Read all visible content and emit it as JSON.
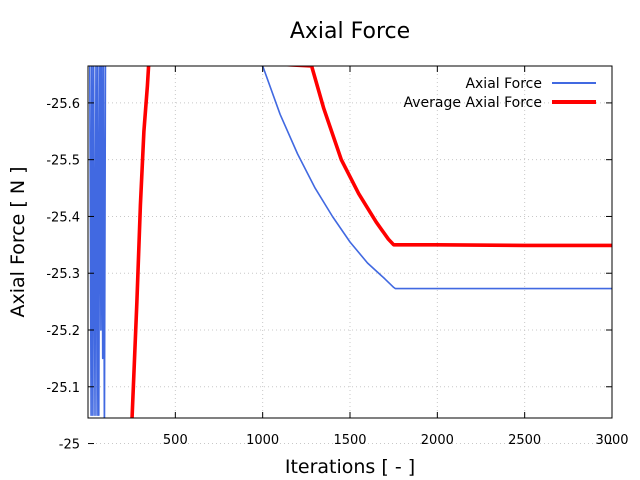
{
  "chart_data": {
    "type": "line",
    "title": "Axial Force",
    "xlabel": "Iterations [ - ]",
    "ylabel": "Axial Force [ N ]",
    "xlim": [
      0,
      3000
    ],
    "ylim": [
      -25.045,
      -25.665
    ],
    "y_axis_inverted": true,
    "x_ticks": [
      500,
      1000,
      1500,
      2000,
      2500,
      3000
    ],
    "x_tick_labels": [
      "500",
      "1000",
      "1500",
      "2000",
      "2500",
      "3000"
    ],
    "y_ticks": [
      -25,
      -25.1,
      -25.2,
      -25.3,
      -25.4,
      -25.5,
      -25.6
    ],
    "y_tick_labels": [
      "-25",
      "-25.1",
      "-25.2",
      "-25.3",
      "-25.4",
      "-25.5",
      "-25.6"
    ],
    "grid": true,
    "legend_position": "top-right",
    "series": [
      {
        "name": "Axial Force",
        "color": "#4169e1",
        "x": [
          10,
          18,
          22,
          28,
          32,
          40,
          46,
          52,
          56,
          62,
          68,
          74,
          78,
          84,
          88,
          94,
          100,
          1000,
          1100,
          1200,
          1300,
          1400,
          1500,
          1600,
          1700,
          1750,
          1760,
          2000,
          2500,
          3000
        ],
        "y": [
          -25.7,
          -25.05,
          -25.7,
          -25.05,
          -25.7,
          -25.05,
          -25.7,
          -25.05,
          -25.7,
          -25.05,
          -25.7,
          -25.2,
          -25.7,
          -25.15,
          -25.7,
          -25.0,
          -25.7,
          -25.665,
          -25.58,
          -25.51,
          -25.45,
          -25.4,
          -25.355,
          -25.318,
          -25.29,
          -25.275,
          -25.273,
          -25.273,
          -25.273,
          -25.273
        ]
      },
      {
        "name": "Average Axial Force",
        "color": "#ff0000",
        "x": [
          250,
          280,
          300,
          320,
          340,
          350,
          1280,
          1350,
          1450,
          1550,
          1650,
          1720,
          1750,
          1760,
          2000,
          2500,
          3000
        ],
        "y": [
          -25.03,
          -25.25,
          -25.42,
          -25.55,
          -25.63,
          -25.68,
          -25.665,
          -25.59,
          -25.5,
          -25.44,
          -25.39,
          -25.36,
          -25.35,
          -25.35,
          -25.35,
          -25.349,
          -25.349
        ]
      }
    ]
  }
}
